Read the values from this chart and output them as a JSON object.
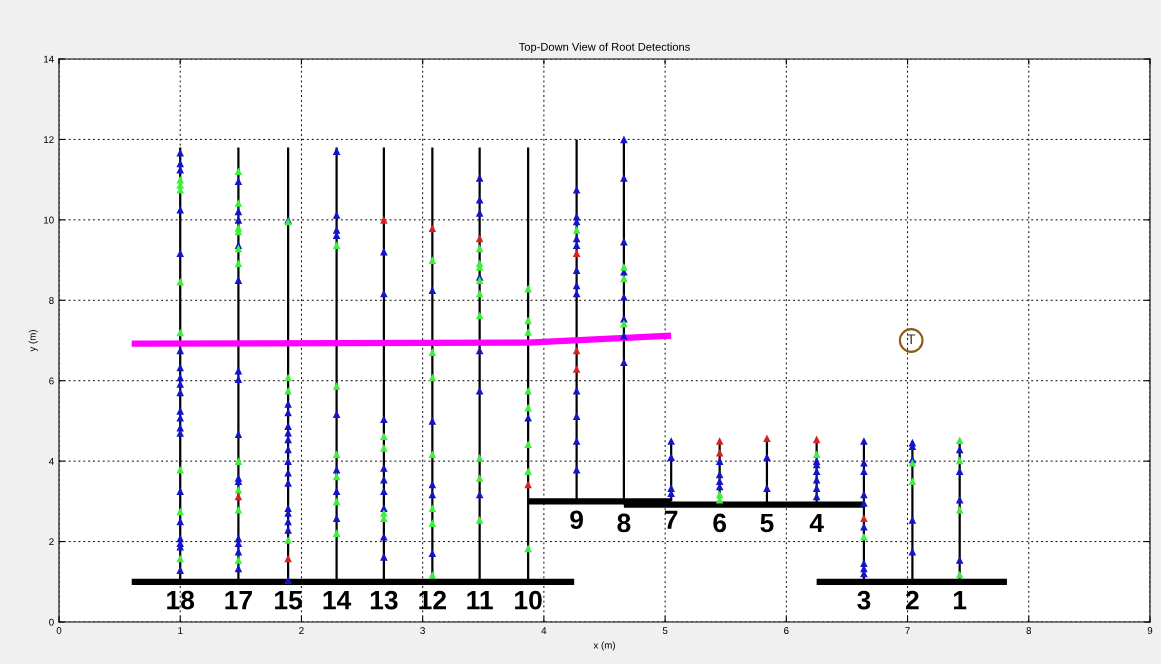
{
  "chart_data": {
    "type": "scatter",
    "title": "Top-Down View of Root Detections",
    "xlabel": "x (m)",
    "ylabel": "y (m)",
    "xlim": [
      0,
      9
    ],
    "ylim": [
      0,
      14
    ],
    "xticks": [
      0,
      1,
      2,
      3,
      4,
      5,
      6,
      7,
      8,
      9
    ],
    "yticks": [
      0,
      2,
      4,
      6,
      8,
      10,
      12,
      14
    ],
    "grid": true,
    "series": [
      {
        "type": "line",
        "name": "18",
        "color": "#000000",
        "marker": "none",
        "x": [
          1.0,
          1.0
        ],
        "values": [
          1,
          11.8
        ]
      },
      {
        "type": "line",
        "name": "17",
        "color": "#000000",
        "marker": "none",
        "x": [
          1.48,
          1.48
        ],
        "values": [
          1,
          11.8
        ]
      },
      {
        "type": "line",
        "name": "15",
        "color": "#000000",
        "marker": "none",
        "x": [
          1.89,
          1.89
        ],
        "values": [
          1,
          11.8
        ]
      },
      {
        "type": "line",
        "name": "14",
        "color": "#000000",
        "marker": "none",
        "x": [
          2.29,
          2.29
        ],
        "values": [
          1,
          11.8
        ]
      },
      {
        "type": "line",
        "name": "13",
        "color": "#000000",
        "marker": "none",
        "x": [
          2.68,
          2.68
        ],
        "values": [
          1,
          11.8
        ]
      },
      {
        "type": "line",
        "name": "12",
        "color": "#000000",
        "marker": "none",
        "x": [
          3.08,
          3.08
        ],
        "values": [
          1,
          11.8
        ]
      },
      {
        "type": "line",
        "name": "11",
        "color": "#000000",
        "marker": "none",
        "x": [
          3.47,
          3.47
        ],
        "values": [
          1,
          11.8
        ]
      },
      {
        "type": "line",
        "name": "10",
        "color": "#000000",
        "marker": "none",
        "x": [
          3.87,
          3.87
        ],
        "values": [
          1,
          11.8
        ]
      },
      {
        "type": "line",
        "name": "9",
        "color": "#000000",
        "marker": "none",
        "x": [
          4.27,
          4.27
        ],
        "values": [
          3.0,
          12.0
        ]
      },
      {
        "type": "line",
        "name": "8",
        "color": "#000000",
        "marker": "none",
        "x": [
          4.66,
          4.66
        ],
        "values": [
          2.92,
          12.0
        ]
      },
      {
        "type": "line",
        "name": "7",
        "color": "#000000",
        "marker": "none",
        "x": [
          5.05,
          5.05
        ],
        "values": [
          3.0,
          4.5
        ]
      },
      {
        "type": "line",
        "name": "6",
        "color": "#000000",
        "marker": "none",
        "x": [
          5.45,
          5.45
        ],
        "values": [
          2.92,
          4.5
        ]
      },
      {
        "type": "line",
        "name": "5",
        "color": "#000000",
        "marker": "none",
        "x": [
          5.84,
          5.84
        ],
        "values": [
          2.92,
          4.5
        ]
      },
      {
        "type": "line",
        "name": "4",
        "color": "#000000",
        "marker": "none",
        "x": [
          6.25,
          6.25
        ],
        "values": [
          2.92,
          4.5
        ]
      },
      {
        "type": "line",
        "name": "3",
        "color": "#000000",
        "marker": "none",
        "x": [
          6.64,
          6.64
        ],
        "values": [
          1,
          4.5
        ]
      },
      {
        "type": "line",
        "name": "2",
        "color": "#000000",
        "marker": "none",
        "x": [
          7.04,
          7.04
        ],
        "values": [
          1,
          4.5
        ]
      },
      {
        "type": "line",
        "name": "1",
        "color": "#000000",
        "marker": "none",
        "x": [
          7.43,
          7.43
        ],
        "values": [
          1,
          4.5
        ]
      },
      {
        "type": "line",
        "color": "#000000",
        "marker": "none",
        "x": [
          0.6,
          4.25
        ],
        "values": [
          1,
          1
        ]
      },
      {
        "type": "line",
        "color": "#000000",
        "marker": "none",
        "x": [
          3.87,
          5.05
        ],
        "values": [
          3.0,
          3.0
        ]
      },
      {
        "type": "line",
        "color": "#000000",
        "marker": "none",
        "x": [
          4.66,
          6.64
        ],
        "values": [
          2.92,
          2.92
        ]
      },
      {
        "type": "line",
        "color": "#000000",
        "marker": "none",
        "x": [
          6.25,
          7.82
        ],
        "values": [
          1,
          1
        ]
      },
      {
        "type": "line",
        "color": "#ff00ff",
        "marker": "none",
        "x": [
          0.6,
          3.87,
          5.05
        ],
        "values": [
          6.92,
          6.95,
          7.12
        ]
      },
      {
        "color": "#1414c8",
        "marker": "triangle",
        "x": [
          1.0,
          1.0,
          1.0,
          1.0,
          1.0,
          1.0,
          1.0,
          1.0,
          1.0,
          1.0,
          1.0,
          1.0,
          1.0,
          1.0,
          1.0,
          1.0,
          1.0,
          1.0,
          1.0,
          1.0,
          1.48,
          1.48,
          1.48,
          1.48,
          1.48,
          1.48,
          1.48,
          1.48,
          1.48,
          1.48,
          1.48,
          1.48,
          1.48,
          1.48,
          1.89,
          1.89,
          1.89,
          1.89,
          1.89,
          1.89,
          1.89,
          1.89,
          1.89,
          1.89,
          1.89,
          1.89,
          1.89,
          1.89,
          1.89,
          2.29,
          2.29,
          2.29,
          2.29,
          2.29,
          2.29,
          2.29,
          2.29,
          2.68,
          2.68,
          2.68,
          2.68,
          2.68,
          2.68,
          2.68,
          2.68,
          2.68,
          3.08,
          3.08,
          3.08,
          3.08,
          3.08,
          3.47,
          3.47,
          3.47,
          3.47,
          3.47,
          3.47,
          3.47,
          3.87,
          4.27,
          4.27,
          4.27,
          4.27,
          4.27,
          4.27,
          4.27,
          4.27,
          4.27,
          4.27,
          4.27,
          4.27,
          4.66,
          4.66,
          4.66,
          4.66,
          4.66,
          4.66,
          4.66,
          4.66,
          5.05,
          5.05,
          5.05,
          5.05,
          5.45,
          5.45,
          5.45,
          5.45,
          5.84,
          5.84,
          6.25,
          6.25,
          6.25,
          6.25,
          6.25,
          6.25,
          6.64,
          6.64,
          6.64,
          6.64,
          6.64,
          6.64,
          6.64,
          6.64,
          6.64,
          7.04,
          7.04,
          7.04,
          7.04,
          7.04,
          7.43,
          7.43,
          7.43,
          7.43
        ],
        "values": [
          11.67,
          11.4,
          11.25,
          10.25,
          9.17,
          6.75,
          6.33,
          6.08,
          5.92,
          5.71,
          5.25,
          5.08,
          4.83,
          4.7,
          3.25,
          2.5,
          2.08,
          1.96,
          1.87,
          1.29,
          10.96,
          10.21,
          10.0,
          9.37,
          8.5,
          6.25,
          6.04,
          4.67,
          3.58,
          3.5,
          2.08,
          1.96,
          1.75,
          1.33,
          10.0,
          5.42,
          5.21,
          4.87,
          4.71,
          4.54,
          4.29,
          4.0,
          3.71,
          3.46,
          2.83,
          2.71,
          2.5,
          2.29,
          1.04,
          11.71,
          10.12,
          9.75,
          9.62,
          5.17,
          3.79,
          3.25,
          2.58,
          9.21,
          8.17,
          5.04,
          3.83,
          3.54,
          3.25,
          2.83,
          2.12,
          1.62,
          8.25,
          5.0,
          3.42,
          3.17,
          1.71,
          11.04,
          10.5,
          10.17,
          8.58,
          6.75,
          5.75,
          3.17,
          5.08,
          10.75,
          10.08,
          9.96,
          9.54,
          9.37,
          8.75,
          8.37,
          8.17,
          5.75,
          5.12,
          4.5,
          3.79,
          12.0,
          11.04,
          9.46,
          8.71,
          8.08,
          7.54,
          7.12,
          6.46,
          4.5,
          4.1,
          3.33,
          3.2,
          4.0,
          3.67,
          3.5,
          3.37,
          4.1,
          3.33,
          4.0,
          3.92,
          3.75,
          3.54,
          3.33,
          3.12,
          4.5,
          3.96,
          3.75,
          3.17,
          2.96,
          2.37,
          1.46,
          1.33,
          1.21,
          4.46,
          4.37,
          4.04,
          2.54,
          1.75,
          4.29,
          3.75,
          3.04,
          1.54
        ]
      },
      {
        "color": "#3cf03c",
        "marker": "triangle",
        "x": [
          1.0,
          1.0,
          1.0,
          1.0,
          1.0,
          1.0,
          1.0,
          1.0,
          1.48,
          1.48,
          1.48,
          1.48,
          1.48,
          1.48,
          1.48,
          1.48,
          1.48,
          1.48,
          1.89,
          1.89,
          1.89,
          1.89,
          2.29,
          2.29,
          2.29,
          2.29,
          2.29,
          2.29,
          2.68,
          2.68,
          2.68,
          2.68,
          3.08,
          3.08,
          3.08,
          3.08,
          3.08,
          3.08,
          3.08,
          3.47,
          3.47,
          3.47,
          3.47,
          3.47,
          3.47,
          3.47,
          3.47,
          3.47,
          3.87,
          3.87,
          3.87,
          3.87,
          3.87,
          3.87,
          3.87,
          3.87,
          4.27,
          4.66,
          4.66,
          4.66,
          5.45,
          5.45,
          6.25,
          6.64,
          7.04,
          7.04,
          7.43,
          7.43,
          7.43,
          7.43
        ],
        "values": [
          11.0,
          10.87,
          10.75,
          8.46,
          7.2,
          3.79,
          2.75,
          1.58,
          11.21,
          10.42,
          9.8,
          9.71,
          9.29,
          8.92,
          4.0,
          3.29,
          2.79,
          1.54,
          9.96,
          6.08,
          5.75,
          2.04,
          9.37,
          5.87,
          4.17,
          3.62,
          3.0,
          2.21,
          4.62,
          4.33,
          2.71,
          2.58,
          9.0,
          6.71,
          6.08,
          4.17,
          2.83,
          2.46,
          1.17,
          9.29,
          8.92,
          8.83,
          8.5,
          8.17,
          7.62,
          4.08,
          3.58,
          2.54,
          8.29,
          7.5,
          7.21,
          5.75,
          5.33,
          4.42,
          3.75,
          1.83,
          9.75,
          8.83,
          8.54,
          7.42,
          3.17,
          3.04,
          4.17,
          2.12,
          3.96,
          3.5,
          4.52,
          4.02,
          2.79,
          1.18
        ]
      },
      {
        "color": "#dc2020",
        "marker": "triangle",
        "x": [
          1.48,
          1.89,
          2.68,
          3.08,
          3.47,
          3.87,
          4.27,
          4.27,
          4.27,
          5.45,
          5.45,
          5.84,
          6.25,
          6.64
        ],
        "values": [
          3.12,
          1.58,
          10.0,
          9.79,
          9.54,
          3.42,
          9.17,
          6.75,
          6.29,
          4.5,
          4.21,
          4.57,
          4.54,
          2.58
        ]
      }
    ],
    "annotations": [
      {
        "text": "T",
        "x": 7.03,
        "y": 7.0
      }
    ]
  }
}
